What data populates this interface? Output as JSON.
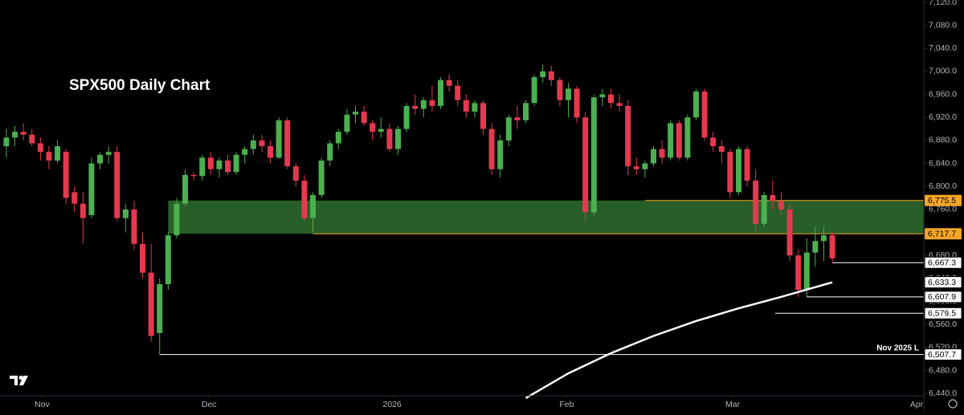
{
  "chart_data": {
    "type": "candlestick",
    "title": "SPX500 Daily Chart",
    "annotation": "Nov 2025 L",
    "up_color": "#4caf50",
    "down_color": "#e5394f",
    "ylim": [
      6436,
      7120
    ],
    "xlim": [
      -0.75,
      107.75
    ],
    "yticks": [
      {
        "value": 6440,
        "label": "6,440.0"
      },
      {
        "value": 6480,
        "label": "6,480.0"
      },
      {
        "value": 6520,
        "label": "6,520.0"
      },
      {
        "value": 6560,
        "label": "6,560.0"
      },
      {
        "value": 6600,
        "label": "6,600.0"
      },
      {
        "value": 6640,
        "label": "6,640.0"
      },
      {
        "value": 6680,
        "label": "6,680.0"
      },
      {
        "value": 6720,
        "label": "6,720.0"
      },
      {
        "value": 6760,
        "label": "6,760.0"
      },
      {
        "value": 6800,
        "label": "6,800.0"
      },
      {
        "value": 6840,
        "label": "6,840.0"
      },
      {
        "value": 6880,
        "label": "6,880.0"
      },
      {
        "value": 6920,
        "label": "6,920.0"
      },
      {
        "value": 6960,
        "label": "6,960.0"
      },
      {
        "value": 7000,
        "label": "7,000.0"
      },
      {
        "value": 7040,
        "label": "7,040.0"
      },
      {
        "value": 7080,
        "label": "7,080.0"
      },
      {
        "value": 7120,
        "label": "7,120.0"
      }
    ],
    "xticks": [
      {
        "value": 4.2,
        "label": "Nov"
      },
      {
        "value": 23.8,
        "label": "Dec"
      },
      {
        "value": 45.3,
        "label": "2026"
      },
      {
        "value": 65.8,
        "label": "Feb"
      },
      {
        "value": 85.3,
        "label": "Mar"
      },
      {
        "value": 106.9,
        "label": "Apr"
      }
    ],
    "open": [
      6870,
      6885,
      6895,
      6890,
      6875,
      6860,
      6845,
      6860,
      6790,
      6770,
      6750,
      6840,
      6855,
      6860,
      6745,
      6760,
      6700,
      6650,
      6545,
      6630,
      6715,
      6770,
      6820,
      6818,
      6850,
      6830,
      6845,
      6825,
      6855,
      6865,
      6880,
      6870,
      6850,
      6915,
      6835,
      6810,
      6745,
      6785,
      6845,
      6875,
      6895,
      6925,
      6930,
      6910,
      6895,
      6900,
      6865,
      6900,
      6940,
      6935,
      6950,
      6940,
      6985,
      6975,
      6950,
      6930,
      6945,
      6900,
      6830,
      6880,
      6920,
      6915,
      6945,
      6990,
      7000,
      6985,
      6950,
      6970,
      6920,
      6755,
      6955,
      6960,
      6945,
      6940,
      6835,
      6830,
      6840,
      6865,
      6850,
      6910,
      6850,
      6920,
      6965,
      6885,
      6870,
      6860,
      6790,
      6865,
      6810,
      6735,
      6785,
      6775,
      6760,
      6680,
      6620,
      6685,
      6705,
      6715
    ],
    "high": [
      6900,
      6905,
      6910,
      6900,
      6885,
      6870,
      6880,
      6865,
      6800,
      6790,
      6850,
      6860,
      6870,
      6870,
      6770,
      6775,
      6720,
      6700,
      6640,
      6720,
      6780,
      6830,
      6825,
      6855,
      6860,
      6850,
      6855,
      6860,
      6870,
      6890,
      6890,
      6880,
      6920,
      6920,
      6840,
      6820,
      6790,
      6850,
      6880,
      6900,
      6935,
      6940,
      6940,
      6915,
      6920,
      6910,
      6905,
      6945,
      6960,
      6955,
      6975,
      6990,
      6995,
      6985,
      6960,
      6950,
      6950,
      6910,
      6890,
      6925,
      6940,
      6950,
      6995,
      7012,
      7010,
      6990,
      6980,
      6975,
      6930,
      6960,
      6970,
      6970,
      6960,
      6950,
      6850,
      6845,
      6870,
      6880,
      6915,
      6915,
      6925,
      6970,
      6970,
      6895,
      6880,
      6865,
      6870,
      6870,
      6830,
      6790,
      6810,
      6790,
      6770,
      6690,
      6710,
      6730,
      6730,
      6720
    ],
    "low": [
      6850,
      6870,
      6880,
      6870,
      6845,
      6830,
      6840,
      6770,
      6755,
      6700,
      6745,
      6830,
      6840,
      6740,
      6720,
      6690,
      6640,
      6530,
      6507.7,
      6620,
      6710,
      6765,
      6810,
      6810,
      6820,
      6815,
      6820,
      6820,
      6840,
      6855,
      6860,
      6840,
      6848,
      6830,
      6800,
      6740,
      6720,
      6780,
      6835,
      6865,
      6890,
      6910,
      6905,
      6880,
      6885,
      6860,
      6855,
      6895,
      6925,
      6920,
      6930,
      6935,
      6965,
      6940,
      6920,
      6920,
      6890,
      6820,
      6815,
      6870,
      6900,
      6910,
      6940,
      6980,
      6975,
      6940,
      6920,
      6910,
      6740,
      6750,
      6940,
      6935,
      6930,
      6820,
      6820,
      6815,
      6835,
      6840,
      6845,
      6845,
      6845,
      6915,
      6880,
      6860,
      6840,
      6780,
      6785,
      6800,
      6720,
      6730,
      6760,
      6750,
      6670,
      6607.9,
      6607.9,
      6660,
      6670,
      6667.3
    ],
    "close": [
      6885,
      6895,
      6890,
      6875,
      6860,
      6845,
      6870,
      6780,
      6770,
      6745,
      6840,
      6855,
      6860,
      6745,
      6760,
      6700,
      6650,
      6540,
      6630,
      6715,
      6770,
      6820,
      6818,
      6850,
      6830,
      6845,
      6825,
      6855,
      6865,
      6880,
      6870,
      6850,
      6915,
      6835,
      6810,
      6745,
      6785,
      6845,
      6875,
      6895,
      6925,
      6930,
      6910,
      6895,
      6900,
      6865,
      6900,
      6940,
      6935,
      6950,
      6940,
      6985,
      6975,
      6950,
      6930,
      6945,
      6900,
      6830,
      6880,
      6920,
      6915,
      6945,
      6990,
      7000,
      6985,
      6950,
      6970,
      6920,
      6755,
      6955,
      6960,
      6945,
      6940,
      6835,
      6830,
      6840,
      6865,
      6850,
      6910,
      6850,
      6920,
      6965,
      6885,
      6870,
      6860,
      6790,
      6865,
      6810,
      6735,
      6785,
      6775,
      6760,
      6680,
      6620,
      6685,
      6705,
      6715,
      6675
    ],
    "zone": {
      "low": 6717.7,
      "high": 6775.5,
      "from": 19,
      "color": "#285e28"
    },
    "levels": [
      {
        "value": 6775.5,
        "label": "6,775.5",
        "from": 75,
        "color": "#f5a623"
      },
      {
        "value": 6717.7,
        "label": "6,717.7",
        "from": 36,
        "color": "#f5a623"
      },
      {
        "value": 6667.3,
        "label": "6,667.3",
        "from": 97,
        "color": "#ffffff"
      },
      {
        "value": 6607.9,
        "label": "6,607.9",
        "from": 94,
        "color": "#ffffff"
      },
      {
        "value": 6579.5,
        "label": "6,579.5",
        "from": 90.3,
        "color": "#ffffff"
      },
      {
        "value": 6507.7,
        "label": "6,507.7",
        "from": 18,
        "color": "#ffffff"
      }
    ],
    "ma": {
      "x": [
        61,
        66,
        71,
        76,
        81,
        86,
        91,
        97
      ],
      "values": [
        6432,
        6475,
        6510,
        6540,
        6566,
        6588,
        6608,
        6633.3
      ],
      "last_label": "6,633.3",
      "color": "#ffffff"
    }
  }
}
